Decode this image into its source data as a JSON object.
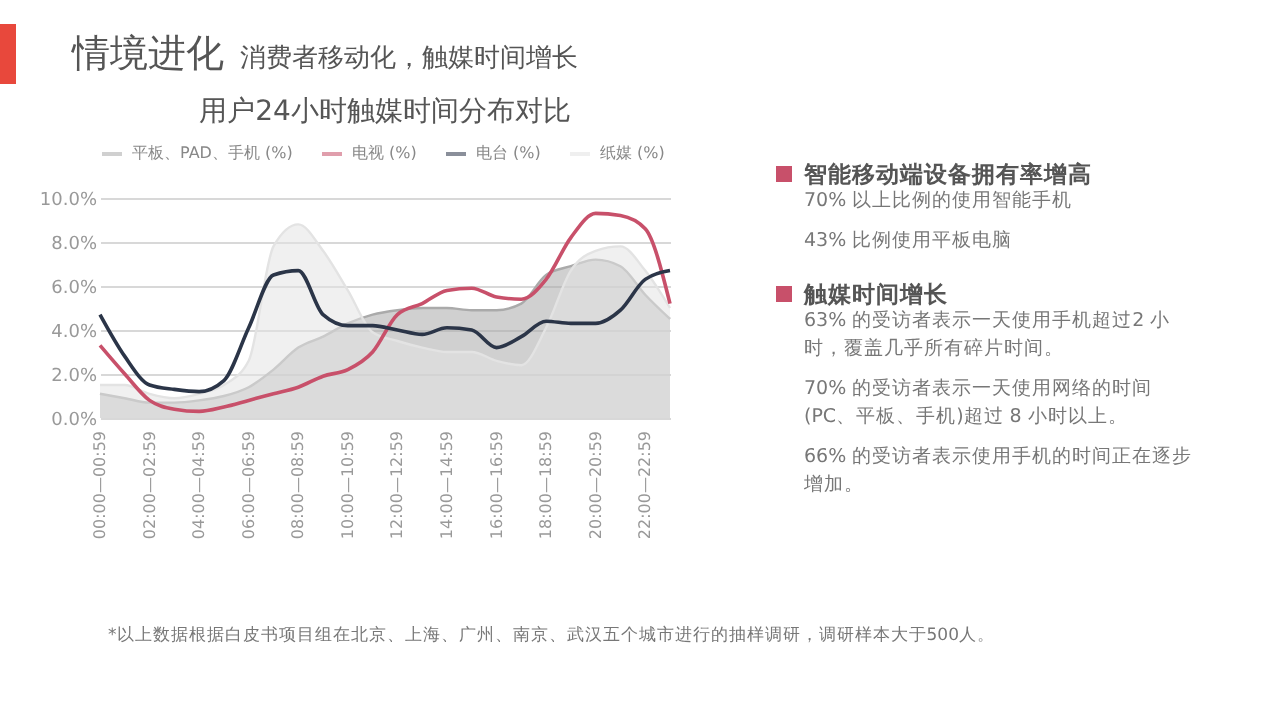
{
  "chart_data": [
    {
      "type": "other",
      "title": "情境进化",
      "subtitle": "消费者移动化，触媒时间增长",
      "annotations": [
        "智能移动端设备拥有率增高",
        "70% 以上比例的使用智能手机",
        "43% 比例使用平板电脑",
        "触媒时间增长",
        "63% 的受访者表示一天使用手机超过2 小时，覆盖几乎所有碎片时间。",
        "70% 的受访者表示一天使用网络的时间(PC、平板、手机)超过 8 小时以上。",
        "66% 的受访者表示使用手机的时间正在逐步增加。"
      ]
    },
    {
      "type": "line",
      "title": "用户24小时触媒时间分布对比",
      "categories": [
        "00:00—00:59",
        null,
        "02:00—02:59",
        null,
        "04:00—04:59",
        null,
        "06:00—06:59",
        null,
        "08:00—08:59",
        null,
        "10:00—10:59",
        null,
        "12:00—12:59",
        null,
        "14:00—14:59",
        null,
        "16:00—16:59",
        null,
        "18:00—18:59",
        null,
        "20:00—20:59",
        null,
        "22:00—22:59",
        null
      ],
      "series": [
        {
          "name": "平板、PAD、手机 (%)",
          "type": "area",
          "color": "#aaaaaa",
          "values": [
            1.1,
            0.9,
            0.7,
            0.7,
            0.8,
            1.0,
            1.4,
            2.2,
            3.2,
            3.7,
            4.3,
            4.7,
            4.9,
            5.0,
            5.0,
            4.9,
            4.9,
            5.2,
            6.5,
            6.9,
            7.2,
            6.9,
            5.6,
            4.5
          ]
        },
        {
          "name": "电视 (%)",
          "color": "#c8506a",
          "values": [
            3.3,
            2.0,
            0.8,
            0.4,
            0.3,
            0.5,
            0.8,
            1.1,
            1.4,
            1.9,
            2.2,
            3.0,
            4.7,
            5.2,
            5.8,
            5.9,
            5.5,
            5.4,
            6.3,
            8.2,
            9.3,
            9.2,
            8.6,
            5.2
          ]
        },
        {
          "name": "电台 (%)",
          "color": "#2b3548",
          "values": [
            4.7,
            2.8,
            1.5,
            1.3,
            1.2,
            1.7,
            4.1,
            6.5,
            6.7,
            4.7,
            4.2,
            4.2,
            4.0,
            3.8,
            4.1,
            4.0,
            3.2,
            3.7,
            4.4,
            4.3,
            4.3,
            4.9,
            6.3,
            6.7
          ]
        },
        {
          "name": "纸媒 (%)",
          "type": "area",
          "color": "#e3e3e3",
          "values": [
            1.5,
            1.5,
            1.1,
            0.9,
            1.1,
            1.5,
            2.6,
            7.8,
            8.8,
            7.6,
            5.8,
            3.9,
            3.5,
            3.2,
            3.0,
            3.0,
            2.6,
            2.4,
            4.1,
            6.7,
            7.6,
            7.8,
            6.7,
            5.0
          ]
        }
      ],
      "ylim": [
        0,
        10
      ],
      "yticks": [
        {
          "value": 0,
          "label": "0.0%"
        },
        {
          "value": 2,
          "label": "2.0%"
        },
        {
          "value": 4,
          "label": "4.0%"
        },
        {
          "value": 6,
          "label": "6.0%"
        },
        {
          "value": 8,
          "label": "8.0%"
        },
        {
          "value": 10,
          "label": "10.0%"
        }
      ],
      "grid": "y",
      "legend": "top",
      "annotations": [
        "*以上数据根据白皮书项目组在北京、上海、广州、南京、武汉五个城市进行的抽样调研，调研样本大于500人。"
      ]
    }
  ]
}
